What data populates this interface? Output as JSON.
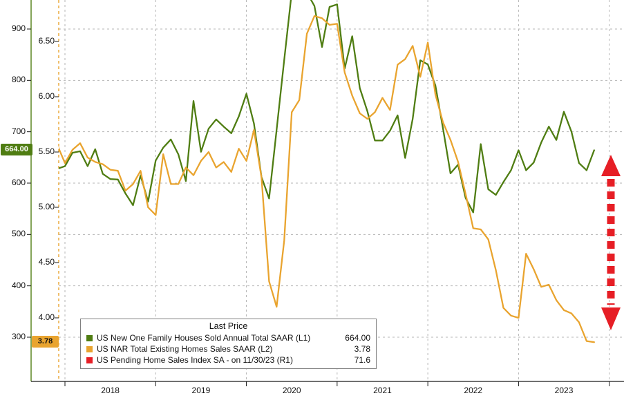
{
  "colors": {
    "green": "#4f7d12",
    "orange": "#e9a42f",
    "red": "#e61e25",
    "grid": "#b5b5b5",
    "axis": "#1a1a1a"
  },
  "badges": {
    "green": "664.00",
    "orange": "3.78"
  },
  "legend": {
    "title": "Last Price",
    "entries": [
      {
        "label": "US New One Family Houses Sold Annual Total SAAR  (L1)",
        "value": "664.00",
        "color_key": "green"
      },
      {
        "label": "US NAR Total Existing Homes Sales SAAR  (L2)",
        "value": "3.78",
        "color_key": "orange"
      },
      {
        "label": "US Pending Home Sales Index SA -  on 11/30/23  (R1)",
        "value": "71.6",
        "color_key": "red"
      }
    ]
  },
  "annotation": {
    "name": "decline-arrow",
    "style": "dashed-double-arrow-vertical",
    "color_key": "red"
  },
  "chart_data": {
    "type": "line",
    "x_start": "2017-12",
    "x_frequency": "monthly",
    "x_axis": {
      "year_labels": [
        "2018",
        "2019",
        "2020",
        "2021",
        "2022",
        "2023"
      ]
    },
    "left_axis": {
      "ticks": [
        "300",
        "400",
        "500",
        "600",
        "700",
        "800",
        "900"
      ],
      "last_price": "664.00"
    },
    "inner_axis": {
      "ticks": [
        "4.00",
        "4.50",
        "5.00",
        "5.50",
        "6.00",
        "6.50"
      ],
      "last_price": "3.78"
    },
    "series": [
      {
        "name": "US New One Family Houses Sold Annual Total SAAR",
        "code": "L1",
        "last": "664.00",
        "color_key": "green",
        "axis": "left",
        "values": [
          628,
          633,
          659,
          662,
          633,
          666,
          618,
          608,
          607,
          580,
          557,
          615,
          564,
          644,
          669,
          685,
          656,
          604,
          760,
          661,
          706,
          724,
          710,
          697,
          730,
          774,
          716,
          612,
          570,
          704,
          840,
          972,
          1011,
          971,
          945,
          865,
          943,
          948,
          823,
          886,
          785,
          740,
          683,
          683,
          702,
          732,
          649,
          725,
          839,
          831,
          790,
          707,
          619,
          636,
          571,
          543,
          676,
          588,
          577,
          602,
          625,
          664,
          625,
          640,
          679,
          710,
          684,
          739,
          700,
          639,
          625,
          664
        ]
      },
      {
        "name": "US NAR Total Existing Homes Sales SAAR",
        "code": "L2",
        "last": "3.78",
        "color_key": "orange",
        "axis": "inner",
        "values": [
          5.56,
          5.4,
          5.52,
          5.58,
          5.45,
          5.41,
          5.39,
          5.34,
          5.33,
          5.15,
          5.21,
          5.33,
          5.0,
          4.93,
          5.48,
          5.21,
          5.21,
          5.36,
          5.29,
          5.42,
          5.5,
          5.36,
          5.41,
          5.32,
          5.53,
          5.42,
          5.7,
          5.27,
          4.33,
          4.1,
          4.7,
          5.86,
          5.97,
          6.57,
          6.73,
          6.71,
          6.65,
          6.66,
          6.22,
          6.01,
          5.85,
          5.8,
          5.86,
          5.99,
          5.88,
          6.29,
          6.34,
          6.46,
          6.18,
          6.49,
          6.02,
          5.77,
          5.61,
          5.41,
          5.12,
          4.81,
          4.8,
          4.71,
          4.43,
          4.09,
          4.02,
          4.0,
          4.58,
          4.44,
          4.28,
          4.3,
          4.16,
          4.07,
          4.04,
          3.96,
          3.79,
          3.78
        ]
      },
      {
        "name": "US Pending Home Sales Index SA -  on 11/30/23",
        "code": "R1",
        "last": "71.6",
        "color_key": "red",
        "axis": "right",
        "values": []
      }
    ]
  }
}
